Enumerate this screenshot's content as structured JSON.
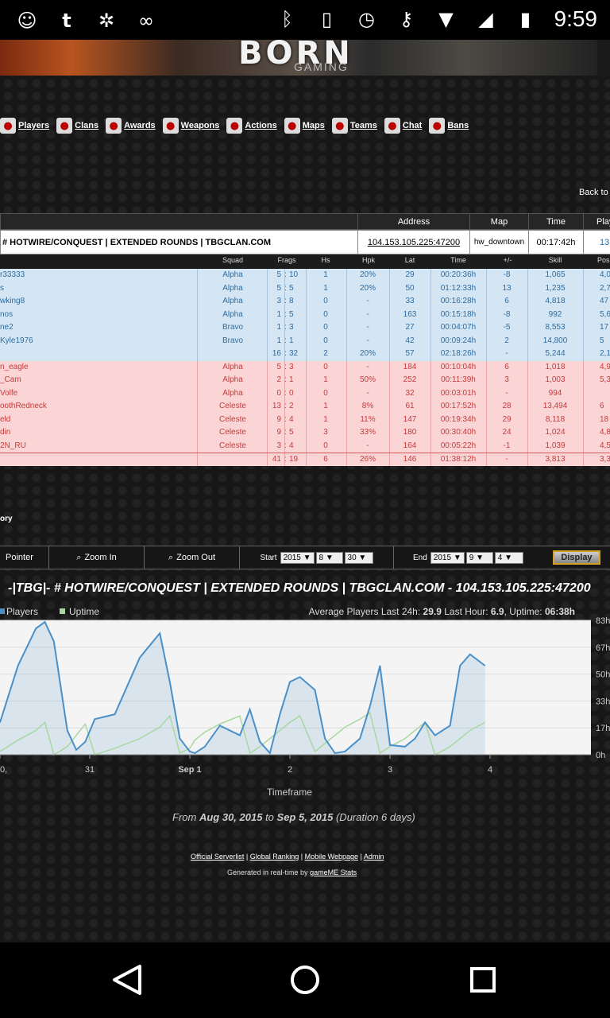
{
  "status_bar": {
    "time": "9:59",
    "left_icons": [
      "sms-icon",
      "tumblr-icon",
      "butterfly-icon",
      "voicemail-icon"
    ],
    "right_icons": [
      "bluetooth-icon",
      "vibrate-icon",
      "alarm-icon",
      "key-icon",
      "wifi-icon",
      "signal-icon",
      "battery-icon"
    ]
  },
  "banner": {
    "logo_text": "BORN",
    "sub_text": "GAMING"
  },
  "nav": [
    {
      "label": "Players",
      "icon": "players-icon"
    },
    {
      "label": "Clans",
      "icon": "clans-icon"
    },
    {
      "label": "Awards",
      "icon": "awards-icon"
    },
    {
      "label": "Weapons",
      "icon": "weapons-icon"
    },
    {
      "label": "Actions",
      "icon": "actions-icon"
    },
    {
      "label": "Maps",
      "icon": "maps-icon"
    },
    {
      "label": "Teams",
      "icon": "teams-icon"
    },
    {
      "label": "Chat",
      "icon": "chat-icon"
    },
    {
      "label": "Bans",
      "icon": "bans-icon"
    }
  ],
  "back_link": "Back to",
  "server": {
    "headers": {
      "address": "Address",
      "map": "Map",
      "time": "Time",
      "players": "Play"
    },
    "name": "# HOTWIRE/CONQUEST | EXTENDED ROUNDS | TBGCLAN.COM",
    "address": "104.153.105.225:47200",
    "map": "hw_downtown",
    "time": "00:17:42h",
    "players": "13"
  },
  "columns": {
    "squad": "Squad",
    "frags": "Frags",
    "hs": "Hs",
    "hpk": "Hpk",
    "lat": "Lat",
    "time": "Time",
    "pm": "+/-",
    "skill": "Skill",
    "pos": "Pos"
  },
  "team_blue": [
    {
      "name": "r33333",
      "squad": "Alpha",
      "k": "5",
      "d": "10",
      "hs": "1",
      "hpk": "20%",
      "lat": "29",
      "time": "00:20:36h",
      "pm": "-8",
      "skill": "1,065",
      "pos": "4,0"
    },
    {
      "name": "s",
      "squad": "Alpha",
      "k": "5",
      "d": "5",
      "hs": "1",
      "hpk": "20%",
      "lat": "50",
      "time": "01:12:33h",
      "pm": "13",
      "skill": "1,235",
      "pos": "2,7"
    },
    {
      "name": "wking8",
      "squad": "Alpha",
      "k": "3",
      "d": "8",
      "hs": "0",
      "hpk": "-",
      "lat": "33",
      "time": "00:16:28h",
      "pm": "6",
      "skill": "4,818",
      "pos": "47"
    },
    {
      "name": "nos",
      "squad": "Alpha",
      "k": "1",
      "d": "5",
      "hs": "0",
      "hpk": "-",
      "lat": "163",
      "time": "00:15:18h",
      "pm": "-8",
      "skill": "992",
      "pos": "5,6"
    },
    {
      "name": "ne2",
      "squad": "Bravo",
      "k": "1",
      "d": "3",
      "hs": "0",
      "hpk": "-",
      "lat": "27",
      "time": "00:04:07h",
      "pm": "-5",
      "skill": "8,553",
      "pos": "17"
    },
    {
      "name": "Kyle1976",
      "squad": "Bravo",
      "k": "1",
      "d": "1",
      "hs": "0",
      "hpk": "-",
      "lat": "42",
      "time": "00:09:24h",
      "pm": "2",
      "skill": "14,800",
      "pos": "5"
    }
  ],
  "team_blue_total": {
    "k": "16",
    "d": "32",
    "hs": "2",
    "hpk": "20%",
    "lat": "57",
    "time": "02:18:26h",
    "pm": "-",
    "skill": "5,244",
    "pos": "2,1"
  },
  "team_red": [
    {
      "name": "n_eagle",
      "squad": "Alpha",
      "k": "5",
      "d": "3",
      "hs": "0",
      "hpk": "-",
      "lat": "184",
      "time": "00:10:04h",
      "pm": "6",
      "skill": "1,018",
      "pos": "4,9"
    },
    {
      "name": "_Cam",
      "squad": "Alpha",
      "k": "2",
      "d": "1",
      "hs": "1",
      "hpk": "50%",
      "lat": "252",
      "time": "00:11:39h",
      "pm": "3",
      "skill": "1,003",
      "pos": "5,3"
    },
    {
      "name": "Volfe",
      "squad": "Alpha",
      "k": "0",
      "d": "0",
      "hs": "0",
      "hpk": "-",
      "lat": "32",
      "time": "00:03:01h",
      "pm": "-",
      "skill": "994",
      "pos": ""
    },
    {
      "name": "oothRedneck",
      "squad": "Celeste",
      "k": "13",
      "d": "2",
      "hs": "1",
      "hpk": "8%",
      "lat": "61",
      "time": "00:17:52h",
      "pm": "28",
      "skill": "13,494",
      "pos": "6"
    },
    {
      "name": "eld",
      "squad": "Celeste",
      "k": "9",
      "d": "4",
      "hs": "1",
      "hpk": "11%",
      "lat": "147",
      "time": "00:19:34h",
      "pm": "29",
      "skill": "8,118",
      "pos": "18"
    },
    {
      "name": "din",
      "squad": "Celeste",
      "k": "9",
      "d": "5",
      "hs": "3",
      "hpk": "33%",
      "lat": "180",
      "time": "00:30:40h",
      "pm": "24",
      "skill": "1,024",
      "pos": "4,8"
    },
    {
      "name": "2N_RU",
      "squad": "Celeste",
      "k": "3",
      "d": "4",
      "hs": "0",
      "hpk": "-",
      "lat": "164",
      "time": "00:05:22h",
      "pm": "-1",
      "skill": "1,039",
      "pos": "4,5"
    }
  ],
  "team_red_total": {
    "k": "41",
    "d": "19",
    "hs": "6",
    "hpk": "26%",
    "lat": "146",
    "time": "01:38:12h",
    "pm": "-",
    "skill": "3,813",
    "pos": "3,3"
  },
  "history_label": "ory",
  "controls": {
    "pointer": "Pointer",
    "zoom_in": "Zoom In",
    "zoom_out": "Zoom Out",
    "start_label": "Start",
    "start_year": "2015",
    "start_month": "8",
    "start_day": "30",
    "end_label": "End",
    "end_year": "2015",
    "end_month": "9",
    "end_day": "4",
    "display": "Display"
  },
  "chart_title": "-|TBG|- # HOTWIRE/CONQUEST | EXTENDED ROUNDS | TBGCLAN.COM - 104.153.105.225:47200",
  "legend": {
    "players": "Players",
    "uptime": "Uptime",
    "avg_prefix": "Average Players Last 24h: ",
    "avg24": "29.9",
    "lasthour_prefix": " Last Hour: ",
    "lasthour": "6.9",
    "uptime_prefix": ", Uptime: ",
    "uptime_val": "06:38h"
  },
  "chart_data": {
    "type": "line",
    "xlabel": "Timeframe",
    "x_ticks": [
      "0,",
      "31",
      "Sep 1",
      "2",
      "3",
      "4"
    ],
    "y_ticks": [
      "83h",
      "67h",
      "50h",
      "33h",
      "17h",
      "0h"
    ],
    "ylim": [
      0,
      83
    ],
    "x": [
      30.0,
      30.2,
      30.4,
      30.5,
      30.6,
      30.75,
      30.85,
      30.95,
      31.05,
      31.25,
      31.5,
      31.7,
      31.8,
      31.9,
      32.0,
      32.05,
      32.15,
      32.3,
      32.5,
      32.6,
      32.7,
      32.8,
      32.9,
      33.0,
      33.1,
      33.25,
      33.35,
      33.45,
      33.55,
      33.7,
      33.8,
      33.9,
      34.0,
      34.15,
      34.25,
      34.35,
      34.45,
      34.6,
      34.7,
      34.8,
      34.95
    ],
    "series": [
      {
        "name": "Players",
        "values": [
          20,
          55,
          78,
          82,
          70,
          15,
          3,
          8,
          22,
          25,
          60,
          75,
          45,
          10,
          2,
          1,
          5,
          18,
          12,
          28,
          8,
          1,
          25,
          45,
          48,
          40,
          10,
          1,
          2,
          10,
          30,
          55,
          6,
          5,
          10,
          20,
          12,
          18,
          55,
          62,
          55
        ]
      },
      {
        "name": "Uptime",
        "values": [
          2,
          9,
          15,
          20,
          0,
          5,
          12,
          19,
          0,
          4,
          10,
          17,
          24,
          1,
          4,
          9,
          14,
          19,
          24,
          1,
          5,
          10,
          15,
          20,
          24,
          2,
          7,
          12,
          17,
          22,
          26,
          1,
          5,
          10,
          15,
          20,
          0,
          5,
          10,
          15,
          20
        ]
      }
    ],
    "legend_position": "top-left",
    "grid": true
  },
  "xaxis_title": "Timeframe",
  "date_range": {
    "from": "From ",
    "from_date": "Aug 30, 2015",
    "to": " to ",
    "to_date": "Sep 5, 2015",
    "dur": " (Duration 6 days)"
  },
  "footer": {
    "links": [
      "Official Serverlist",
      "Global Ranking",
      "Mobile Webpage",
      "Admin"
    ],
    "gen_prefix": "Generated in real-time by ",
    "gen_link": "gameME Stats"
  }
}
